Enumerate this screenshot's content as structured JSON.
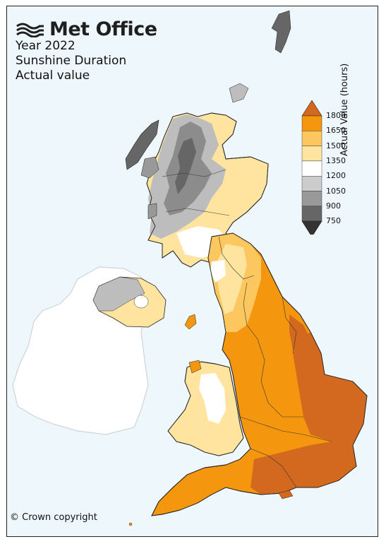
{
  "logo": {
    "text": "Met Office"
  },
  "title": {
    "line1": "Year 2022",
    "line2": "Sunshine Duration",
    "line3": "Actual value"
  },
  "copyright": "© Crown copyright",
  "legend": {
    "title": "Actual Value (hours)",
    "ticks": [
      "1800",
      "1650",
      "1500",
      "1350",
      "1200",
      "1050",
      "900",
      "750"
    ],
    "bands": [
      {
        "range": "above 1800",
        "color": "#d2691e"
      },
      {
        "range": "1650-1800",
        "color": "#f5960f"
      },
      {
        "range": "1500-1650",
        "color": "#fcc75f"
      },
      {
        "range": "1350-1500",
        "color": "#ffe4a0"
      },
      {
        "range": "1200-1350",
        "color": "#ffffff"
      },
      {
        "range": "1050-1200",
        "color": "#cccccc"
      },
      {
        "range": "900-1050",
        "color": "#999999"
      },
      {
        "range": "750-900",
        "color": "#666666"
      },
      {
        "range": "below 750",
        "color": "#333333"
      }
    ]
  },
  "colors": {
    "sea": "#eef7fb",
    "ireland": "#ffffff",
    "border": "#222222"
  }
}
